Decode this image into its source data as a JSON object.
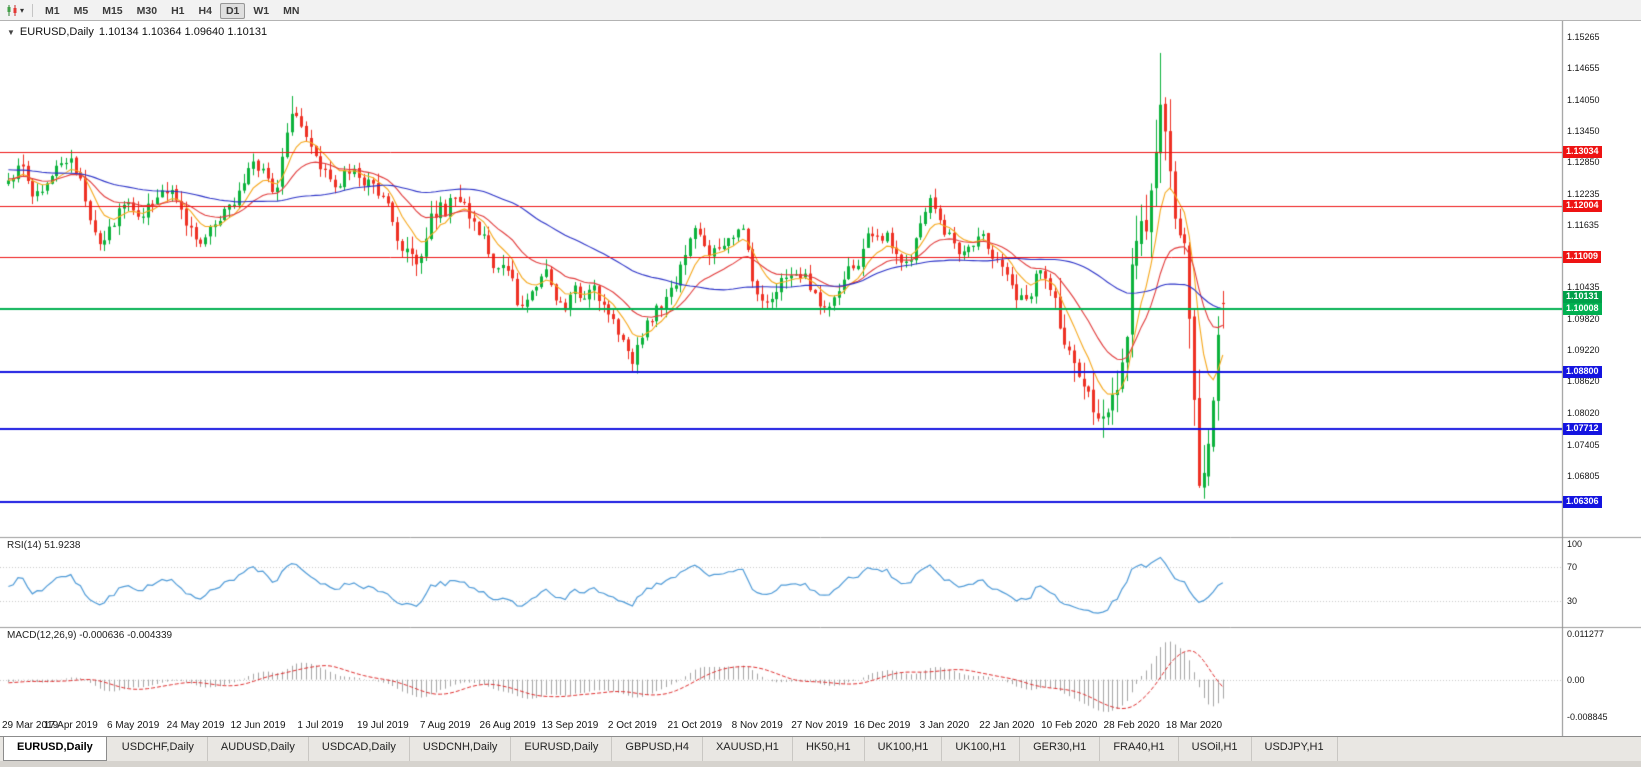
{
  "toolbar": {
    "timeframes": [
      "M1",
      "M5",
      "M15",
      "M30",
      "H1",
      "H4",
      "D1",
      "W1",
      "MN"
    ],
    "active_timeframe": "D1"
  },
  "chart": {
    "symbol": "EURUSD,Daily",
    "ohlc": "1.10134 1.10364 1.09640 1.10131"
  },
  "indicators": {
    "rsi_label": "RSI(14) 51.9238",
    "macd_label": "MACD(12,26,9) -0.000636 -0.004339"
  },
  "axes": {
    "price_ticks": [
      "1.15265",
      "1.14655",
      "1.14050",
      "1.13450",
      "1.12850",
      "1.12235",
      "1.11635",
      "1.11035",
      "1.10435",
      "1.09820",
      "1.09220",
      "1.08620",
      "1.08020",
      "1.07405",
      "1.06805"
    ],
    "rsi_ticks": [
      "100",
      "70",
      "30"
    ],
    "macd_ticks": [
      "0.011277",
      "0.00",
      "-0.008845"
    ],
    "dates": [
      "29 Mar 2019",
      "17 Apr 2019",
      "6 May 2019",
      "24 May 2019",
      "12 Jun 2019",
      "1 Jul 2019",
      "19 Jul 2019",
      "7 Aug 2019",
      "26 Aug 2019",
      "13 Sep 2019",
      "2 Oct 2019",
      "21 Oct 2019",
      "8 Nov 2019",
      "27 Nov 2019",
      "16 Dec 2019",
      "3 Jan 2020",
      "22 Jan 2020",
      "10 Feb 2020",
      "28 Feb 2020",
      "18 Mar 2020"
    ],
    "bars_per_date_label": 13
  },
  "price_lines": [
    {
      "price": 1.13034,
      "label": "1.13034",
      "color": "#ee1313",
      "width": 1
    },
    {
      "price": 1.12004,
      "label": "1.12004",
      "color": "#ee1313",
      "width": 1
    },
    {
      "price": 1.11009,
      "label": "1.11009",
      "color": "#ee1313",
      "width": 1
    },
    {
      "price": 1.10008,
      "label": "1.10008",
      "color": "#00b050",
      "width": 2
    },
    {
      "price": 1.088,
      "label": "1.08800",
      "color": "#1414e0",
      "width": 2
    },
    {
      "price": 1.07712,
      "label": "1.07712",
      "color": "#1414e0",
      "width": 2
    },
    {
      "price": 1.06306,
      "label": "1.06306",
      "color": "#1414e0",
      "width": 2
    }
  ],
  "current_price": {
    "label": "1.10131",
    "value": 1.10131,
    "color": "#00a04a"
  },
  "tabs": [
    {
      "label": "EURUSD,Daily",
      "active": true
    },
    {
      "label": "USDCHF,Daily",
      "active": false
    },
    {
      "label": "AUDUSD,Daily",
      "active": false
    },
    {
      "label": "USDCAD,Daily",
      "active": false
    },
    {
      "label": "USDCNH,Daily",
      "active": false
    },
    {
      "label": "EURUSD,Daily",
      "active": false
    },
    {
      "label": "GBPUSD,H4",
      "active": false
    },
    {
      "label": "XAUUSD,H1",
      "active": false
    },
    {
      "label": "HK50,H1",
      "active": false
    },
    {
      "label": "UK100,H1",
      "active": false
    },
    {
      "label": "UK100,H1",
      "active": false
    },
    {
      "label": "GER30,H1",
      "active": false
    },
    {
      "label": "FRA40,H1",
      "active": false
    },
    {
      "label": "USOil,H1",
      "active": false
    },
    {
      "label": "USDJPY,H1",
      "active": false
    }
  ],
  "chart_data": {
    "type": "candlestick",
    "symbol": "EURUSD",
    "timeframe": "D1",
    "visible_bars": 254,
    "preroll_bars": 60,
    "price_range": [
      1.057,
      1.1545
    ],
    "seed": 9,
    "waypoints": [
      [
        -60,
        1.133
      ],
      [
        -45,
        1.127
      ],
      [
        -30,
        1.131
      ],
      [
        -15,
        1.123
      ],
      [
        -6,
        1.1255
      ],
      [
        0,
        1.124
      ],
      [
        3,
        1.128
      ],
      [
        6,
        1.1215
      ],
      [
        10,
        1.127
      ],
      [
        13,
        1.129
      ],
      [
        16,
        1.123
      ],
      [
        19,
        1.1125
      ],
      [
        22,
        1.116
      ],
      [
        25,
        1.1215
      ],
      [
        28,
        1.118
      ],
      [
        31,
        1.1215
      ],
      [
        34,
        1.124
      ],
      [
        37,
        1.1165
      ],
      [
        40,
        1.113
      ],
      [
        44,
        1.117
      ],
      [
        48,
        1.1215
      ],
      [
        51,
        1.129
      ],
      [
        54,
        1.125
      ],
      [
        56,
        1.1215
      ],
      [
        59,
        1.139
      ],
      [
        61,
        1.137
      ],
      [
        63,
        1.132
      ],
      [
        65,
        1.1285
      ],
      [
        68,
        1.1225
      ],
      [
        71,
        1.1275
      ],
      [
        74,
        1.125
      ],
      [
        78,
        1.1225
      ],
      [
        81,
        1.1145
      ],
      [
        84,
        1.11
      ],
      [
        86,
        1.107
      ],
      [
        88,
        1.1195
      ],
      [
        91,
        1.119
      ],
      [
        94,
        1.1215
      ],
      [
        97,
        1.1175
      ],
      [
        100,
        1.112
      ],
      [
        102,
        1.1075
      ],
      [
        104,
        1.1095
      ],
      [
        107,
        1.099
      ],
      [
        110,
        1.104
      ],
      [
        112,
        1.1075
      ],
      [
        114,
        1.1035
      ],
      [
        116,
        1.0995
      ],
      [
        118,
        1.1065
      ],
      [
        120,
        1.1005
      ],
      [
        122,
        1.104
      ],
      [
        124,
        1.1015
      ],
      [
        126,
        1.099
      ],
      [
        128,
        1.095
      ],
      [
        130,
        1.089
      ],
      [
        132,
        1.095
      ],
      [
        134,
        1.0985
      ],
      [
        136,
        1.101
      ],
      [
        138,
        1.103
      ],
      [
        140,
        1.107
      ],
      [
        143,
        1.115
      ],
      [
        145,
        1.113
      ],
      [
        147,
        1.1105
      ],
      [
        149,
        1.1125
      ],
      [
        151,
        1.115
      ],
      [
        153,
        1.116
      ],
      [
        155,
        1.1075
      ],
      [
        156,
        1.103
      ],
      [
        158,
        1.101
      ],
      [
        160,
        1.104
      ],
      [
        163,
        1.1065
      ],
      [
        165,
        1.1075
      ],
      [
        167,
        1.1055
      ],
      [
        169,
        1.1005
      ],
      [
        171,
        1.0998
      ],
      [
        173,
        1.104
      ],
      [
        175,
        1.1075
      ],
      [
        177,
        1.1085
      ],
      [
        179,
        1.1135
      ],
      [
        181,
        1.115
      ],
      [
        183,
        1.114
      ],
      [
        185,
        1.1115
      ],
      [
        187,
        1.108
      ],
      [
        189,
        1.112
      ],
      [
        191,
        1.1195
      ],
      [
        193,
        1.1215
      ],
      [
        195,
        1.116
      ],
      [
        197,
        1.1125
      ],
      [
        199,
        1.1105
      ],
      [
        201,
        1.113
      ],
      [
        203,
        1.114
      ],
      [
        205,
        1.1105
      ],
      [
        207,
        1.1085
      ],
      [
        209,
        1.105
      ],
      [
        211,
        1.1015
      ],
      [
        213,
        1.1025
      ],
      [
        215,
        1.109
      ],
      [
        217,
        1.1055
      ],
      [
        219,
        1.0985
      ],
      [
        221,
        1.091
      ],
      [
        223,
        1.0895
      ],
      [
        225,
        1.083
      ],
      [
        227,
        1.08
      ],
      [
        229,
        1.0785
      ],
      [
        230,
        1.0845
      ],
      [
        232,
        1.088
      ],
      [
        233,
        1.094
      ],
      [
        234,
        1.1025
      ],
      [
        235,
        1.1135
      ],
      [
        236,
        1.117
      ],
      [
        237,
        1.1135
      ],
      [
        238,
        1.124
      ],
      [
        239,
        1.129
      ],
      [
        240,
        1.1446
      ],
      [
        241,
        1.1325
      ],
      [
        242,
        1.1285
      ],
      [
        243,
        1.1185
      ],
      [
        244,
        1.111
      ],
      [
        245,
        1.118
      ],
      [
        246,
        1.0995
      ],
      [
        247,
        1.0915
      ],
      [
        248,
        1.07
      ],
      [
        249,
        1.065
      ],
      [
        250,
        1.0727
      ],
      [
        251,
        1.079
      ],
      [
        252,
        1.0885
      ],
      [
        253,
        1.1013
      ]
    ],
    "volatility": [
      {
        "from": -60,
        "to": 77,
        "v": 0.0036
      },
      {
        "from": 78,
        "to": 96,
        "v": 0.0046
      },
      {
        "from": 97,
        "to": 217,
        "v": 0.0036
      },
      {
        "from": 218,
        "to": 233,
        "v": 0.0068
      },
      {
        "from": 234,
        "to": 253,
        "v": 0.0115
      }
    ],
    "wick_overrides": {
      "59": {
        "h": 1.1412
      },
      "130": {
        "l": 1.0879
      },
      "229": {
        "l": 1.0778
      },
      "240": {
        "h": 1.1495
      },
      "249": {
        "l": 1.0636
      }
    },
    "last_candle": {
      "o": 1.10134,
      "h": 1.10364,
      "l": 1.0964,
      "c": 1.10131
    },
    "colors": {
      "bull": "#0cb23c",
      "bear": "#ee3124"
    },
    "moving_averages": [
      {
        "type": "ema",
        "period": 8,
        "color": "#f6a81c"
      },
      {
        "type": "ema",
        "period": 20,
        "color": "#e23b3b"
      },
      {
        "type": "sma",
        "period": 50,
        "color": "#2b32c8"
      }
    ],
    "rsi": {
      "period": 14,
      "levels": [
        70,
        30
      ],
      "range": [
        0,
        100
      ],
      "color": "#4f9bd8",
      "level_color": "#c8c8c8"
    },
    "macd": {
      "fast": 12,
      "slow": 26,
      "signal": 9,
      "range": [
        -0.008845,
        0.011277
      ],
      "hist_color": "#a6a6a6",
      "signal_color": "#e03030"
    }
  }
}
